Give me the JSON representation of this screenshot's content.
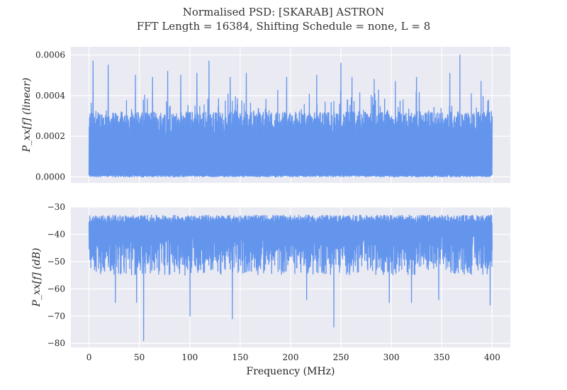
{
  "figure": {
    "title_line1": "Normalised PSD: [SKARAB] ASTRON",
    "title_line2": "FFT Length = 16384, Shifting Schedule = none, L = 8",
    "background": "#eaeaf2",
    "series_color": "#6495ed"
  },
  "chart_data": [
    {
      "type": "line",
      "ylabel": "P_xx[f] (linear)",
      "xlim": [
        -18,
        418
      ],
      "ylim": [
        -3e-05,
        0.00064
      ],
      "xticks": [
        0,
        50,
        100,
        150,
        200,
        250,
        300,
        350,
        400
      ],
      "yticks": [
        0.0,
        0.0002,
        0.0004,
        0.0006
      ],
      "ytick_labels": [
        "0.0000",
        "0.0002",
        "0.0004",
        "0.0006"
      ],
      "grid": true,
      "series": [
        {
          "x_start": 0,
          "x_end": 400,
          "noise_floor_range": [
            0.0,
            0.00032
          ],
          "peaks": [
            {
              "x": 4,
              "y": 0.00057
            },
            {
              "x": 19,
              "y": 0.00055
            },
            {
              "x": 46,
              "y": 0.0005
            },
            {
              "x": 63,
              "y": 0.00049
            },
            {
              "x": 78,
              "y": 0.00052
            },
            {
              "x": 91,
              "y": 0.0005
            },
            {
              "x": 107,
              "y": 0.00051
            },
            {
              "x": 119,
              "y": 0.00057
            },
            {
              "x": 140,
              "y": 0.00049
            },
            {
              "x": 156,
              "y": 0.00051
            },
            {
              "x": 196,
              "y": 0.00049
            },
            {
              "x": 226,
              "y": 0.0005
            },
            {
              "x": 250,
              "y": 0.00056
            },
            {
              "x": 261,
              "y": 0.00049
            },
            {
              "x": 283,
              "y": 0.00048
            },
            {
              "x": 304,
              "y": 0.00047
            },
            {
              "x": 325,
              "y": 0.00049
            },
            {
              "x": 358,
              "y": 0.00051
            },
            {
              "x": 368,
              "y": 0.0006
            },
            {
              "x": 389,
              "y": 0.00047
            }
          ]
        }
      ]
    },
    {
      "type": "line",
      "ylabel": "P_xx[f] (dB)",
      "xlabel": "Frequency (MHz)",
      "xlim": [
        -18,
        418
      ],
      "ylim": [
        -81.5,
        -30
      ],
      "xticks": [
        0,
        50,
        100,
        150,
        200,
        250,
        300,
        350,
        400
      ],
      "xtick_labels": [
        "0",
        "50",
        "100",
        "150",
        "200",
        "250",
        "300",
        "350",
        "400"
      ],
      "yticks": [
        -80,
        -70,
        -60,
        -50,
        -40,
        -30
      ],
      "ytick_labels": [
        "−80",
        "−70",
        "−60",
        "−50",
        "−40",
        "−30"
      ],
      "grid": true,
      "series": [
        {
          "x_start": 0,
          "x_end": 400,
          "upper_envelope_range": [
            -36,
            -33
          ],
          "lower_body_range": [
            -55,
            -40
          ],
          "dips": [
            {
              "x": 26,
              "y": -65
            },
            {
              "x": 47,
              "y": -65
            },
            {
              "x": 54,
              "y": -79
            },
            {
              "x": 100,
              "y": -70
            },
            {
              "x": 142,
              "y": -71
            },
            {
              "x": 216,
              "y": -64
            },
            {
              "x": 243,
              "y": -74
            },
            {
              "x": 298,
              "y": -65
            },
            {
              "x": 320,
              "y": -65
            },
            {
              "x": 347,
              "y": -64
            },
            {
              "x": 398,
              "y": -66
            }
          ]
        }
      ]
    }
  ]
}
